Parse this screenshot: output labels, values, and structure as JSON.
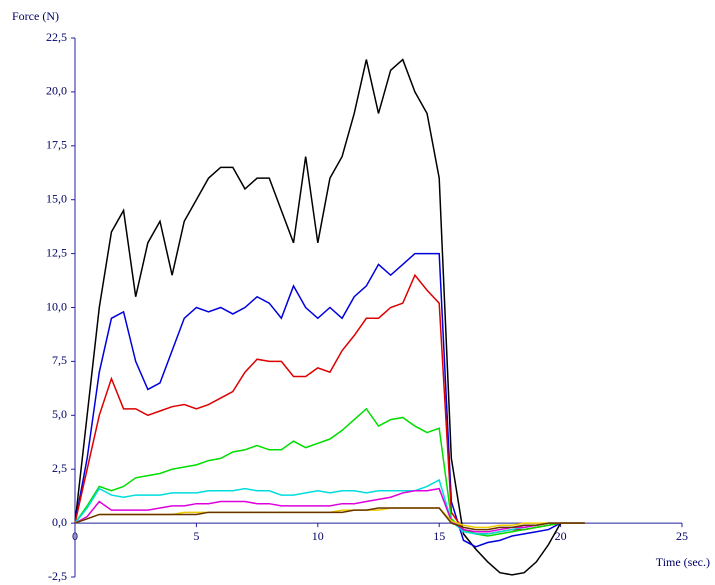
{
  "chart_data": {
    "type": "line",
    "ylabel": "Force   (N)",
    "xlabel": "Time (sec.)",
    "xlim": [
      0,
      25
    ],
    "xticks": [
      0,
      5,
      10,
      15,
      20,
      25
    ],
    "ylim": [
      -2.5,
      22.5
    ],
    "yticks": [
      {
        "value": -2.5,
        "label": "-2,5"
      },
      {
        "value": 0,
        "label": "0,0"
      },
      {
        "value": 2.5,
        "label": "2,5"
      },
      {
        "value": 5,
        "label": "5,0"
      },
      {
        "value": 7.5,
        "label": "7,5"
      },
      {
        "value": 10,
        "label": "10,0"
      },
      {
        "value": 12.5,
        "label": "12,5"
      },
      {
        "value": 15,
        "label": "15,0"
      },
      {
        "value": 17.5,
        "label": "17,5"
      },
      {
        "value": 20,
        "label": "20,0"
      },
      {
        "value": 22.5,
        "label": "22,5"
      }
    ],
    "x": [
      0,
      0.5,
      1,
      1.5,
      2,
      2.5,
      3,
      3.5,
      4,
      4.5,
      5,
      5.5,
      6,
      6.5,
      7,
      7.5,
      8,
      8.5,
      9,
      9.5,
      10,
      10.5,
      11,
      11.5,
      12,
      12.5,
      13,
      13.5,
      14,
      14.5,
      15,
      15.5,
      16,
      16.5,
      17,
      17.5,
      18,
      18.5,
      19,
      19.5,
      20,
      20.5,
      21
    ],
    "series": [
      {
        "color": "#000000",
        "values": [
          0,
          5,
          10,
          13.5,
          14.5,
          10.5,
          13,
          14,
          11.5,
          14,
          15,
          16,
          16.5,
          16.5,
          15.5,
          16,
          16,
          14.5,
          13,
          17,
          13,
          16,
          17,
          19,
          21.5,
          19,
          21,
          21.5,
          20,
          19,
          16,
          3,
          -0.5,
          -1.2,
          -1.8,
          -2.3,
          -2.4,
          -2.3,
          -1.8,
          -1,
          0,
          0,
          0
        ]
      },
      {
        "color": "#0000dd",
        "values": [
          0,
          3,
          7,
          9.5,
          9.8,
          7.5,
          6.2,
          6.5,
          8,
          9.5,
          10,
          9.8,
          10,
          9.7,
          10,
          10.5,
          10.2,
          9.5,
          11,
          10,
          9.5,
          10,
          9.5,
          10.5,
          11,
          12,
          11.5,
          12,
          12.5,
          12.5,
          12.5,
          1,
          -0.8,
          -1.1,
          -0.9,
          -0.8,
          -0.6,
          -0.5,
          -0.4,
          -0.3,
          0,
          0,
          0
        ]
      },
      {
        "color": "#dd0000",
        "values": [
          0,
          2.5,
          5,
          6.7,
          5.3,
          5.3,
          5,
          5.2,
          5.4,
          5.5,
          5.3,
          5.5,
          5.8,
          6.1,
          7,
          7.6,
          7.5,
          7.5,
          6.8,
          6.8,
          7.2,
          7,
          8,
          8.7,
          9.5,
          9.5,
          10,
          10.2,
          11.5,
          10.8,
          10.2,
          0.5,
          -0.3,
          -0.5,
          -0.5,
          -0.4,
          -0.3,
          -0.3,
          -0.2,
          -0.1,
          0,
          0,
          0
        ]
      },
      {
        "color": "#00dd00",
        "values": [
          0,
          0.8,
          1.7,
          1.5,
          1.7,
          2.1,
          2.2,
          2.3,
          2.5,
          2.6,
          2.7,
          2.9,
          3,
          3.3,
          3.4,
          3.6,
          3.4,
          3.4,
          3.8,
          3.5,
          3.7,
          3.9,
          4.3,
          4.8,
          5.3,
          4.5,
          4.8,
          4.9,
          4.5,
          4.2,
          4.4,
          0.2,
          -0.3,
          -0.5,
          -0.6,
          -0.5,
          -0.4,
          -0.3,
          -0.2,
          -0.1,
          0,
          0,
          0
        ]
      },
      {
        "color": "#00dddd",
        "values": [
          0,
          0.7,
          1.6,
          1.3,
          1.2,
          1.3,
          1.3,
          1.3,
          1.4,
          1.4,
          1.4,
          1.5,
          1.5,
          1.5,
          1.6,
          1.5,
          1.5,
          1.3,
          1.3,
          1.4,
          1.5,
          1.4,
          1.5,
          1.5,
          1.4,
          1.5,
          1.5,
          1.5,
          1.5,
          1.7,
          2,
          0.1,
          -0.4,
          -0.5,
          -0.5,
          -0.4,
          -0.3,
          -0.2,
          -0.1,
          0,
          0,
          0,
          0
        ]
      },
      {
        "color": "#dd00dd",
        "values": [
          0,
          0.3,
          1,
          0.6,
          0.6,
          0.6,
          0.6,
          0.7,
          0.8,
          0.8,
          0.9,
          0.9,
          1,
          1,
          1,
          0.9,
          0.9,
          0.8,
          0.8,
          0.8,
          0.8,
          0.8,
          0.9,
          0.9,
          1,
          1.1,
          1.2,
          1.4,
          1.5,
          1.5,
          1.6,
          0.1,
          -0.3,
          -0.4,
          -0.4,
          -0.3,
          -0.2,
          -0.2,
          -0.1,
          0,
          0,
          0,
          0
        ]
      },
      {
        "color": "#eecc00",
        "values": [
          0,
          0.2,
          0.4,
          0.4,
          0.4,
          0.4,
          0.4,
          0.4,
          0.4,
          0.5,
          0.5,
          0.5,
          0.5,
          0.5,
          0.5,
          0.5,
          0.5,
          0.5,
          0.5,
          0.5,
          0.5,
          0.5,
          0.6,
          0.6,
          0.6,
          0.6,
          0.7,
          0.7,
          0.7,
          0.7,
          0.7,
          0.1,
          -0.1,
          -0.2,
          -0.2,
          -0.1,
          -0.1,
          0,
          0,
          0,
          0,
          0,
          0
        ]
      },
      {
        "color": "#663300",
        "values": [
          0,
          0.2,
          0.4,
          0.4,
          0.4,
          0.4,
          0.4,
          0.4,
          0.4,
          0.4,
          0.4,
          0.5,
          0.5,
          0.5,
          0.5,
          0.5,
          0.5,
          0.5,
          0.5,
          0.5,
          0.5,
          0.5,
          0.5,
          0.6,
          0.6,
          0.7,
          0.7,
          0.7,
          0.7,
          0.7,
          0.7,
          0,
          -0.2,
          -0.3,
          -0.3,
          -0.2,
          -0.2,
          -0.1,
          -0.1,
          0,
          0,
          0,
          0
        ]
      }
    ]
  }
}
